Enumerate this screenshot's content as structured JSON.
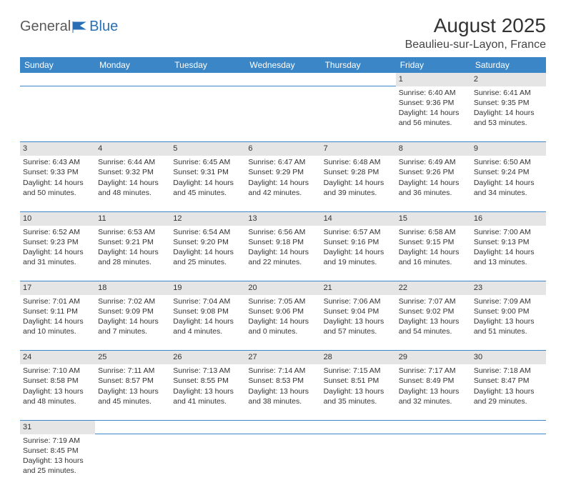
{
  "logo": {
    "general": "General",
    "blue": "Blue"
  },
  "title": "August 2025",
  "location": "Beaulieu-sur-Layon, France",
  "weekdays": [
    "Sunday",
    "Monday",
    "Tuesday",
    "Wednesday",
    "Thursday",
    "Friday",
    "Saturday"
  ],
  "colors": {
    "header_bg": "#3b86c6",
    "header_text": "#ffffff",
    "daynum_bg": "#e5e5e5",
    "border": "#3b86c6",
    "logo_gray": "#5a5a5a",
    "logo_blue": "#2a6fb5"
  },
  "weeks": [
    [
      null,
      null,
      null,
      null,
      null,
      {
        "n": "1",
        "sr": "Sunrise: 6:40 AM",
        "ss": "Sunset: 9:36 PM",
        "d1": "Daylight: 14 hours",
        "d2": "and 56 minutes."
      },
      {
        "n": "2",
        "sr": "Sunrise: 6:41 AM",
        "ss": "Sunset: 9:35 PM",
        "d1": "Daylight: 14 hours",
        "d2": "and 53 minutes."
      }
    ],
    [
      {
        "n": "3",
        "sr": "Sunrise: 6:43 AM",
        "ss": "Sunset: 9:33 PM",
        "d1": "Daylight: 14 hours",
        "d2": "and 50 minutes."
      },
      {
        "n": "4",
        "sr": "Sunrise: 6:44 AM",
        "ss": "Sunset: 9:32 PM",
        "d1": "Daylight: 14 hours",
        "d2": "and 48 minutes."
      },
      {
        "n": "5",
        "sr": "Sunrise: 6:45 AM",
        "ss": "Sunset: 9:31 PM",
        "d1": "Daylight: 14 hours",
        "d2": "and 45 minutes."
      },
      {
        "n": "6",
        "sr": "Sunrise: 6:47 AM",
        "ss": "Sunset: 9:29 PM",
        "d1": "Daylight: 14 hours",
        "d2": "and 42 minutes."
      },
      {
        "n": "7",
        "sr": "Sunrise: 6:48 AM",
        "ss": "Sunset: 9:28 PM",
        "d1": "Daylight: 14 hours",
        "d2": "and 39 minutes."
      },
      {
        "n": "8",
        "sr": "Sunrise: 6:49 AM",
        "ss": "Sunset: 9:26 PM",
        "d1": "Daylight: 14 hours",
        "d2": "and 36 minutes."
      },
      {
        "n": "9",
        "sr": "Sunrise: 6:50 AM",
        "ss": "Sunset: 9:24 PM",
        "d1": "Daylight: 14 hours",
        "d2": "and 34 minutes."
      }
    ],
    [
      {
        "n": "10",
        "sr": "Sunrise: 6:52 AM",
        "ss": "Sunset: 9:23 PM",
        "d1": "Daylight: 14 hours",
        "d2": "and 31 minutes."
      },
      {
        "n": "11",
        "sr": "Sunrise: 6:53 AM",
        "ss": "Sunset: 9:21 PM",
        "d1": "Daylight: 14 hours",
        "d2": "and 28 minutes."
      },
      {
        "n": "12",
        "sr": "Sunrise: 6:54 AM",
        "ss": "Sunset: 9:20 PM",
        "d1": "Daylight: 14 hours",
        "d2": "and 25 minutes."
      },
      {
        "n": "13",
        "sr": "Sunrise: 6:56 AM",
        "ss": "Sunset: 9:18 PM",
        "d1": "Daylight: 14 hours",
        "d2": "and 22 minutes."
      },
      {
        "n": "14",
        "sr": "Sunrise: 6:57 AM",
        "ss": "Sunset: 9:16 PM",
        "d1": "Daylight: 14 hours",
        "d2": "and 19 minutes."
      },
      {
        "n": "15",
        "sr": "Sunrise: 6:58 AM",
        "ss": "Sunset: 9:15 PM",
        "d1": "Daylight: 14 hours",
        "d2": "and 16 minutes."
      },
      {
        "n": "16",
        "sr": "Sunrise: 7:00 AM",
        "ss": "Sunset: 9:13 PM",
        "d1": "Daylight: 14 hours",
        "d2": "and 13 minutes."
      }
    ],
    [
      {
        "n": "17",
        "sr": "Sunrise: 7:01 AM",
        "ss": "Sunset: 9:11 PM",
        "d1": "Daylight: 14 hours",
        "d2": "and 10 minutes."
      },
      {
        "n": "18",
        "sr": "Sunrise: 7:02 AM",
        "ss": "Sunset: 9:09 PM",
        "d1": "Daylight: 14 hours",
        "d2": "and 7 minutes."
      },
      {
        "n": "19",
        "sr": "Sunrise: 7:04 AM",
        "ss": "Sunset: 9:08 PM",
        "d1": "Daylight: 14 hours",
        "d2": "and 4 minutes."
      },
      {
        "n": "20",
        "sr": "Sunrise: 7:05 AM",
        "ss": "Sunset: 9:06 PM",
        "d1": "Daylight: 14 hours",
        "d2": "and 0 minutes."
      },
      {
        "n": "21",
        "sr": "Sunrise: 7:06 AM",
        "ss": "Sunset: 9:04 PM",
        "d1": "Daylight: 13 hours",
        "d2": "and 57 minutes."
      },
      {
        "n": "22",
        "sr": "Sunrise: 7:07 AM",
        "ss": "Sunset: 9:02 PM",
        "d1": "Daylight: 13 hours",
        "d2": "and 54 minutes."
      },
      {
        "n": "23",
        "sr": "Sunrise: 7:09 AM",
        "ss": "Sunset: 9:00 PM",
        "d1": "Daylight: 13 hours",
        "d2": "and 51 minutes."
      }
    ],
    [
      {
        "n": "24",
        "sr": "Sunrise: 7:10 AM",
        "ss": "Sunset: 8:58 PM",
        "d1": "Daylight: 13 hours",
        "d2": "and 48 minutes."
      },
      {
        "n": "25",
        "sr": "Sunrise: 7:11 AM",
        "ss": "Sunset: 8:57 PM",
        "d1": "Daylight: 13 hours",
        "d2": "and 45 minutes."
      },
      {
        "n": "26",
        "sr": "Sunrise: 7:13 AM",
        "ss": "Sunset: 8:55 PM",
        "d1": "Daylight: 13 hours",
        "d2": "and 41 minutes."
      },
      {
        "n": "27",
        "sr": "Sunrise: 7:14 AM",
        "ss": "Sunset: 8:53 PM",
        "d1": "Daylight: 13 hours",
        "d2": "and 38 minutes."
      },
      {
        "n": "28",
        "sr": "Sunrise: 7:15 AM",
        "ss": "Sunset: 8:51 PM",
        "d1": "Daylight: 13 hours",
        "d2": "and 35 minutes."
      },
      {
        "n": "29",
        "sr": "Sunrise: 7:17 AM",
        "ss": "Sunset: 8:49 PM",
        "d1": "Daylight: 13 hours",
        "d2": "and 32 minutes."
      },
      {
        "n": "30",
        "sr": "Sunrise: 7:18 AM",
        "ss": "Sunset: 8:47 PM",
        "d1": "Daylight: 13 hours",
        "d2": "and 29 minutes."
      }
    ],
    [
      {
        "n": "31",
        "sr": "Sunrise: 7:19 AM",
        "ss": "Sunset: 8:45 PM",
        "d1": "Daylight: 13 hours",
        "d2": "and 25 minutes."
      },
      null,
      null,
      null,
      null,
      null,
      null
    ]
  ]
}
